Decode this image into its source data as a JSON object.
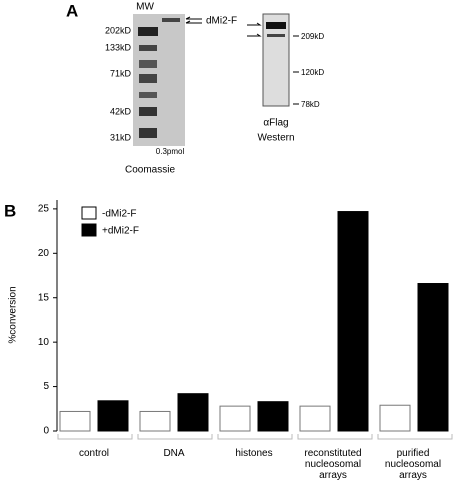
{
  "panel_a": {
    "label": "A",
    "mw": "MW",
    "markers": [
      "202kD",
      "133kD",
      "71kD",
      "42kD",
      "31kD"
    ],
    "amount": "0.3pmol",
    "stain": "Coomassie",
    "band_label": "dMi2-F",
    "western_markers": [
      "209kD",
      "120kD",
      "78kD"
    ],
    "antibody": "αFlag",
    "method": "Western"
  },
  "chart_data": {
    "type": "bar",
    "panel_label": "B",
    "y_label": "%conversion",
    "categories": [
      "control",
      "DNA",
      "histones",
      "reconstituted nucleosomal arrays",
      "purified nucleosomal arrays"
    ],
    "series": [
      {
        "name": "-dMi2-F",
        "color": "#ffffff",
        "values": [
          2.2,
          2.2,
          2.8,
          2.8,
          2.9
        ]
      },
      {
        "name": "+dMi2-F",
        "color": "#000000",
        "values": [
          3.4,
          4.2,
          3.3,
          24.7,
          16.6
        ]
      }
    ],
    "ylim": [
      0,
      26
    ],
    "yticks": [
      0,
      5,
      10,
      15,
      20,
      25
    ],
    "grid": false
  }
}
